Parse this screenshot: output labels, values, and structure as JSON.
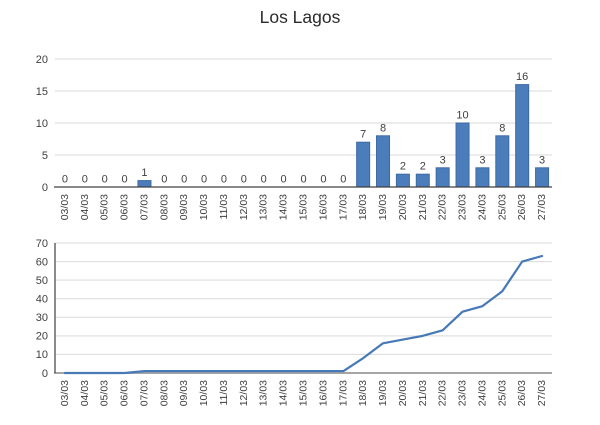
{
  "page": {
    "title": "Los Lagos"
  },
  "colors": {
    "bar_fill": "#4c7dbb",
    "bar_stroke": "#3c69a5",
    "line_stroke": "#4779b6",
    "grid": "#d9d9d9",
    "axis_dark": "#404040",
    "axis_gray": "#a6a6a6",
    "text": "#404040",
    "title_text": "#2b2b2b",
    "background": "#ffffff"
  },
  "chart_data": [
    {
      "name": "daily-bar-chart",
      "type": "bar",
      "title": "Los Lagos",
      "categories": [
        "03/03",
        "04/03",
        "05/03",
        "06/03",
        "07/03",
        "08/03",
        "09/03",
        "10/03",
        "11/03",
        "12/03",
        "13/03",
        "14/03",
        "15/03",
        "16/03",
        "17/03",
        "18/03",
        "19/03",
        "20/03",
        "21/03",
        "22/03",
        "23/03",
        "24/03",
        "25/03",
        "26/03",
        "27/03"
      ],
      "values": [
        0,
        0,
        0,
        0,
        1,
        0,
        0,
        0,
        0,
        0,
        0,
        0,
        0,
        0,
        0,
        7,
        8,
        2,
        2,
        3,
        10,
        3,
        8,
        16,
        3
      ],
      "ylim": [
        0,
        20
      ],
      "yticks": [
        0,
        5,
        10,
        15,
        20
      ],
      "grid": true,
      "legend": "none",
      "data_labels": true,
      "xlabel": "",
      "ylabel": ""
    },
    {
      "name": "cumulative-line-chart",
      "type": "line",
      "title": "",
      "categories": [
        "03/03",
        "04/03",
        "05/03",
        "06/03",
        "07/03",
        "08/03",
        "09/03",
        "10/03",
        "11/03",
        "12/03",
        "13/03",
        "14/03",
        "15/03",
        "16/03",
        "17/03",
        "18/03",
        "19/03",
        "20/03",
        "21/03",
        "22/03",
        "23/03",
        "24/03",
        "25/03",
        "26/03",
        "27/03"
      ],
      "values": [
        0,
        0,
        0,
        0,
        1,
        1,
        1,
        1,
        1,
        1,
        1,
        1,
        1,
        1,
        1,
        8,
        16,
        18,
        20,
        23,
        33,
        36,
        44,
        60,
        63
      ],
      "ylim": [
        0,
        70
      ],
      "yticks": [
        0,
        10,
        20,
        30,
        40,
        50,
        60,
        70
      ],
      "grid": true,
      "legend": "none",
      "data_labels": false,
      "xlabel": "",
      "ylabel": ""
    }
  ]
}
